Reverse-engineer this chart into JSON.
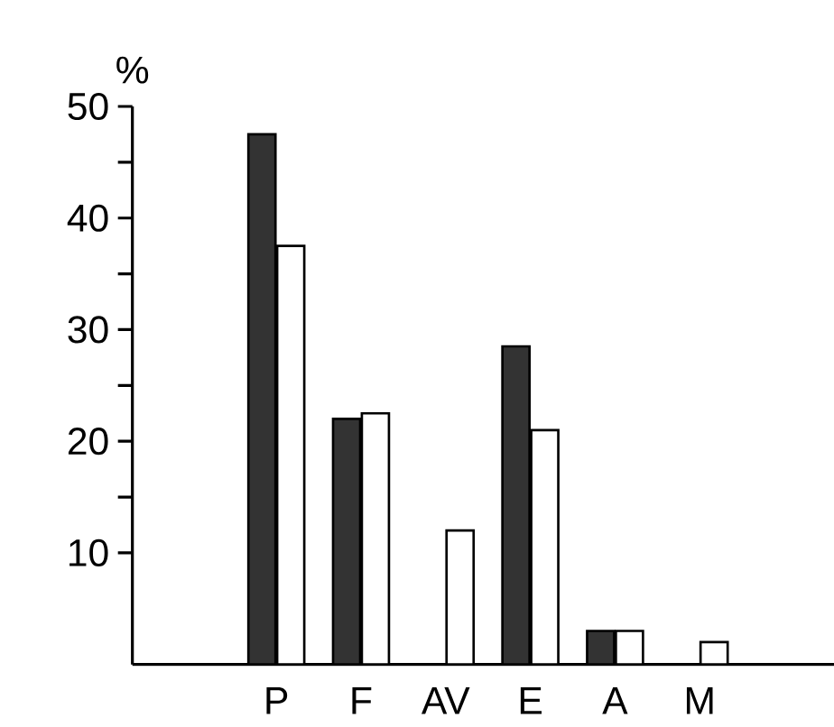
{
  "chart_data": {
    "type": "bar",
    "ylabel": "%",
    "categories": [
      "P",
      "F",
      "AV",
      "E",
      "A",
      "M"
    ],
    "series": [
      {
        "color": "#333333",
        "values": [
          47.5,
          22,
          null,
          28.5,
          3,
          null
        ]
      },
      {
        "color": "#ffffff",
        "values": [
          37.5,
          22.5,
          12,
          21,
          3,
          2
        ]
      }
    ],
    "ylim": [
      0,
      50
    ],
    "yticks": [
      10,
      20,
      30,
      40,
      50
    ],
    "grid": false
  }
}
